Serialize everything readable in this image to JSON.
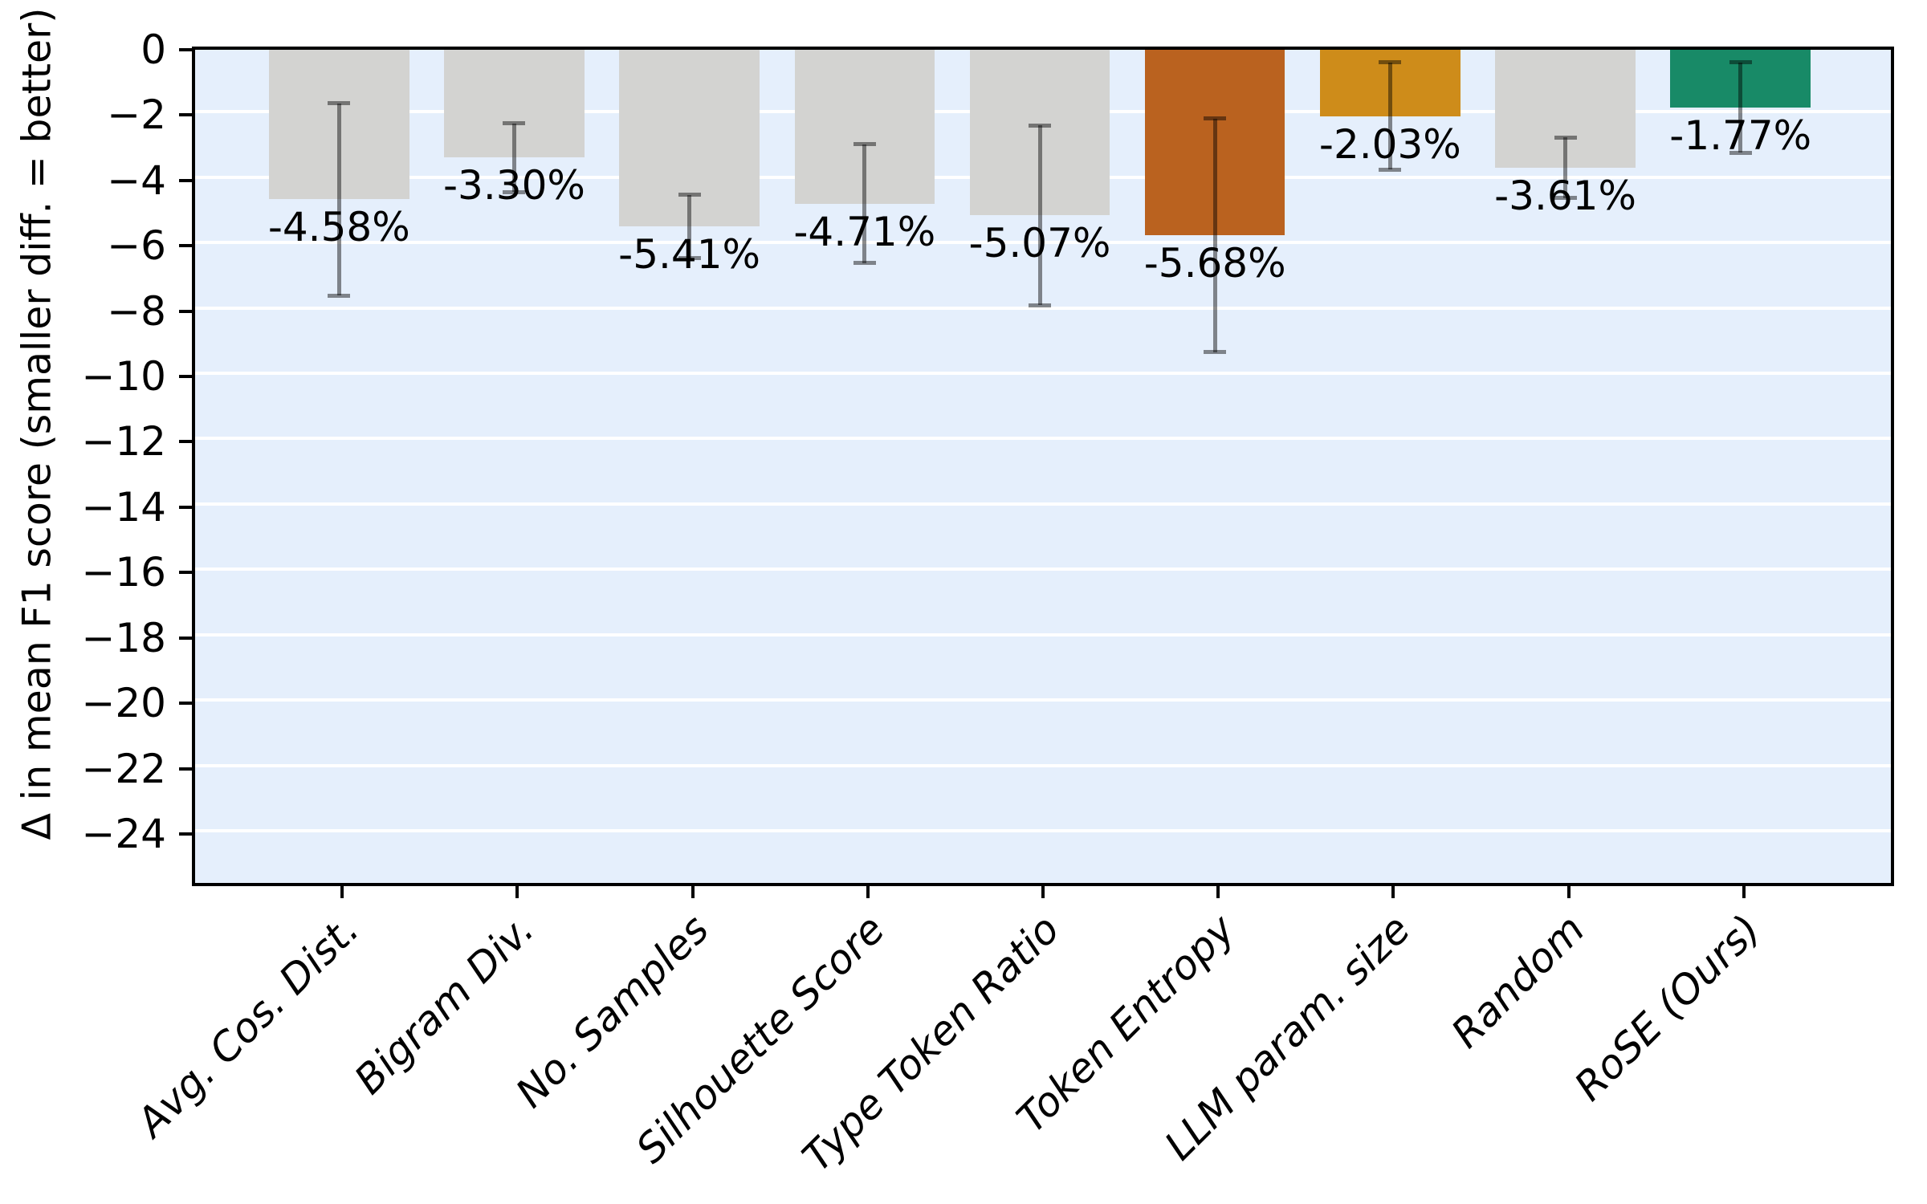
{
  "chart_data": {
    "type": "bar",
    "title": "",
    "xlabel": "",
    "ylabel": "Δ in mean F1 score (smaller diff. = better)",
    "categories": [
      "Avg. Cos. Dist.",
      "Bigram Div.",
      "No. Samples",
      "Silhouette Score",
      "Type Token Ratio",
      "Token Entropy",
      "LLM param. size",
      "Random",
      "RoSE (Ours)"
    ],
    "values": [
      -4.58,
      -3.3,
      -5.41,
      -4.71,
      -5.07,
      -5.68,
      -2.03,
      -3.61,
      -1.77
    ],
    "errors": [
      2.94,
      1.05,
      0.97,
      1.82,
      2.75,
      3.57,
      1.64,
      0.93,
      1.38
    ],
    "data_labels": [
      "-4.58%",
      "-3.30%",
      "-5.41%",
      "-4.71%",
      "-5.07%",
      "-5.68%",
      "-2.03%",
      "-3.61%",
      "-1.77%"
    ],
    "yticks": [
      0,
      -2,
      -4,
      -6,
      -8,
      -10,
      -12,
      -14,
      -16,
      -18,
      -20,
      -22,
      -24
    ],
    "ytick_labels": [
      "0",
      "−2",
      "−4",
      "−6",
      "−8",
      "−10",
      "−12",
      "−14",
      "−16",
      "−18",
      "−20",
      "−22",
      "−24"
    ],
    "ylim": [
      -25.5,
      0
    ],
    "grid": "horizontal",
    "legend_position": "none",
    "colors": {
      "bars": [
        "#d3d3d1",
        "#d3d3d1",
        "#d3d3d1",
        "#d3d3d1",
        "#d3d3d1",
        "#ba621f",
        "#ce8c1a",
        "#d3d3d1",
        "#188a67"
      ],
      "plot_background": "#e5effc",
      "gridline": "#ffffff",
      "error_bar": "rgba(0,0,0,0.45)",
      "axis": "#000000",
      "text": "#000000"
    }
  }
}
